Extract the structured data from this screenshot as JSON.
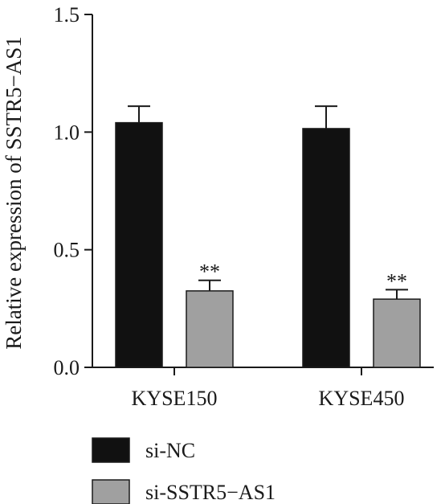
{
  "chart_data": {
    "type": "bar",
    "title": "",
    "xlabel": "",
    "ylabel": "Relative expression of SSTR5−AS1",
    "ylim": [
      0,
      1.5
    ],
    "yticks": [
      "0.0",
      "0.5",
      "1.0",
      "1.5"
    ],
    "categories": [
      "KYSE150",
      "KYSE450"
    ],
    "series": [
      {
        "name": "si-NC",
        "color": "#111111",
        "values": [
          1.04,
          1.015
        ],
        "errors": [
          0.07,
          0.095
        ]
      },
      {
        "name": "si-SSTR5−AS1",
        "color": "#a0a0a0",
        "values": [
          0.325,
          0.29
        ],
        "errors": [
          0.045,
          0.04
        ]
      }
    ],
    "annotations": [
      {
        "category": "KYSE150",
        "series": "si-SSTR5−AS1",
        "text": "**"
      },
      {
        "category": "KYSE450",
        "series": "si-SSTR5−AS1",
        "text": "**"
      }
    ],
    "legend": {
      "placement": "bottom-left"
    },
    "grid": false
  }
}
